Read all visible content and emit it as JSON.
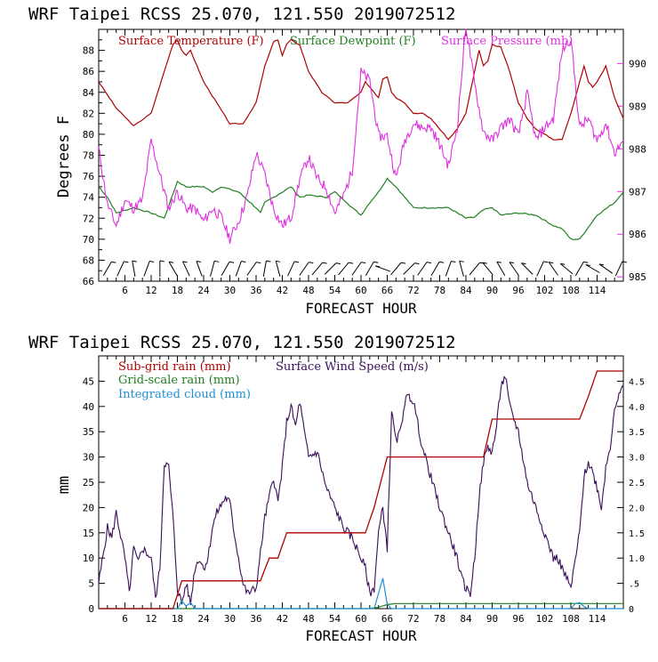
{
  "header_top": "WRF   Taipei RCSS   25.070, 121.550  2019072512",
  "header_bottom": "WRF   Taipei RCSS   25.070, 121.550  2019072512",
  "colors": {
    "temp": "#b00000",
    "dew": "#208020",
    "pres": "#e030e0",
    "rain": "#b00000",
    "grain": "#208020",
    "cloud": "#1e8fd6",
    "wind": "#3a0d5a"
  },
  "chart_data": [
    {
      "type": "line",
      "title": "WRF   Taipei RCSS   25.070, 121.550  2019072512",
      "xlabel": "FORECAST HOUR",
      "ylabel": "Degrees F",
      "xlim": [
        0,
        120
      ],
      "ylim": [
        66,
        90
      ],
      "y2lim": [
        984.9,
        990.8
      ],
      "xticks": [
        "6",
        "12",
        "18",
        "24",
        "30",
        "36",
        "42",
        "48",
        "54",
        "60",
        "66",
        "72",
        "78",
        "84",
        "90",
        "96",
        "102",
        "108",
        "114"
      ],
      "yticks": [
        "66",
        "68",
        "70",
        "72",
        "74",
        "76",
        "78",
        "80",
        "82",
        "84",
        "86",
        "88"
      ],
      "y2ticks": [
        "985",
        "986",
        "987",
        "988",
        "989",
        "990"
      ],
      "legend": [
        "Surface Temperature (F)",
        "Surface Dewpoint (F)",
        "Surface Pressure (mb)"
      ],
      "series": [
        {
          "name": "Surface Temperature (F)",
          "x": [
            0,
            4,
            8,
            12,
            15,
            17,
            18,
            19,
            20,
            21,
            24,
            27,
            30,
            33,
            36,
            38,
            40,
            41,
            42,
            43,
            44,
            46,
            48,
            51,
            54,
            57,
            60,
            61,
            62,
            64,
            65,
            66,
            67,
            68,
            70,
            72,
            74,
            76,
            78,
            80,
            82,
            84,
            86,
            87,
            88,
            89,
            90,
            92,
            94,
            96,
            98,
            100,
            102,
            104,
            106,
            108,
            110,
            111,
            112,
            113,
            114,
            116,
            118,
            120
          ],
          "values": [
            85,
            82.5,
            80.8,
            82,
            86,
            88.6,
            89,
            88,
            87.5,
            88,
            85,
            83,
            81,
            81,
            83,
            86.5,
            88.8,
            89,
            87.5,
            88.6,
            89,
            88.5,
            86,
            84,
            83,
            83,
            84,
            85,
            84.5,
            83.5,
            85.3,
            85.5,
            84,
            83.5,
            83,
            82,
            82,
            81.5,
            80.5,
            79.5,
            80.5,
            82,
            86,
            88,
            86.5,
            87,
            88.5,
            88.3,
            86,
            83,
            81.5,
            80.5,
            80,
            79.5,
            79.5,
            82,
            85,
            86.5,
            85,
            84.5,
            85,
            86.5,
            83.5,
            81.5
          ]
        },
        {
          "name": "Surface Dewpoint (F)",
          "x": [
            0,
            2,
            4,
            8,
            12,
            15,
            18,
            20,
            24,
            26,
            28,
            32,
            36,
            37,
            38,
            40,
            44,
            46,
            48,
            52,
            54,
            56,
            58,
            60,
            62,
            64,
            66,
            68,
            70,
            72,
            76,
            80,
            84,
            86,
            88,
            90,
            92,
            96,
            100,
            104,
            106,
            108,
            110,
            114,
            118,
            120
          ],
          "values": [
            75,
            74,
            72.5,
            73,
            72.5,
            72,
            75.5,
            75,
            75,
            74.5,
            75,
            74.5,
            73,
            72.5,
            73.5,
            74,
            75,
            74,
            74.2,
            74,
            74.5,
            73.8,
            73,
            72.3,
            73.5,
            74.5,
            75.8,
            75,
            74,
            73,
            73,
            73,
            72,
            72.1,
            72.8,
            73,
            72.3,
            72.5,
            72.3,
            71.3,
            71,
            70,
            70,
            72.3,
            73.5,
            74.5
          ]
        },
        {
          "name": "Surface Pressure (mb)",
          "x": [
            0,
            2,
            4,
            6,
            8,
            10,
            12,
            14,
            16,
            18,
            20,
            22,
            24,
            26,
            28,
            30,
            32,
            34,
            36,
            38,
            40,
            42,
            44,
            46,
            48,
            50,
            52,
            54,
            56,
            58,
            60,
            62,
            64,
            66,
            68,
            70,
            72,
            74,
            76,
            78,
            80,
            82,
            84,
            86,
            88,
            90,
            92,
            94,
            96,
            98,
            100,
            102,
            104,
            106,
            108,
            110,
            112,
            114,
            116,
            118,
            120
          ],
          "values": [
            988,
            986.7,
            986.2,
            986.8,
            986.6,
            986.8,
            988.2,
            987.4,
            986.6,
            987,
            986.6,
            986.6,
            986.3,
            986.6,
            986.4,
            985.9,
            986.3,
            986.9,
            987.9,
            987.4,
            986.6,
            986.2,
            986.4,
            987.3,
            987.8,
            987.3,
            987.1,
            986.5,
            986.9,
            987.5,
            989.8,
            989.6,
            988.3,
            988.3,
            987.3,
            988.2,
            988.6,
            988.5,
            988.5,
            988.1,
            987.6,
            988.5,
            990.9,
            989.5,
            988.4,
            988.2,
            988.5,
            988.7,
            988.3,
            989.3,
            988.2,
            988.5,
            988.7,
            990.3,
            990.6,
            988.5,
            988.7,
            988.2,
            988.6,
            987.9,
            988.2
          ]
        },
        {
          "name": "Surface Wind barbs",
          "x": [
            2,
            5,
            8,
            11,
            14,
            17,
            20,
            23,
            26,
            29,
            32,
            35,
            38,
            41,
            44,
            47,
            50,
            53,
            56,
            59,
            62,
            65,
            68,
            71,
            74,
            77,
            80,
            83,
            86,
            89,
            92,
            95,
            98,
            101,
            104,
            107,
            110,
            113,
            116,
            119
          ],
          "values": [
            1,
            1,
            1,
            1,
            1,
            1,
            1,
            1,
            1,
            1,
            1,
            1,
            1,
            1,
            1,
            1,
            1,
            1,
            1,
            1,
            1,
            1,
            1,
            1,
            1,
            1,
            1,
            1,
            1,
            1,
            1,
            1,
            1,
            1,
            1,
            1,
            1,
            1,
            1,
            1
          ]
        }
      ]
    },
    {
      "type": "line",
      "title": "WRF   Taipei RCSS   25.070, 121.550  2019072512",
      "xlabel": "FORECAST HOUR",
      "ylabel": "mm",
      "xlim": [
        0,
        120
      ],
      "ylim": [
        0,
        50
      ],
      "y2lim": [
        0,
        5
      ],
      "xticks": [
        "6",
        "12",
        "18",
        "24",
        "30",
        "36",
        "42",
        "48",
        "54",
        "60",
        "66",
        "72",
        "78",
        "84",
        "90",
        "96",
        "102",
        "108",
        "114"
      ],
      "yticks": [
        "0",
        "5",
        "10",
        "15",
        "20",
        "25",
        "30",
        "35",
        "40",
        "45"
      ],
      "y2ticks": [
        "0",
        ".5",
        "1.0",
        "1.5",
        "2.0",
        "2.5",
        "3.0",
        "3.5",
        "4.0",
        "4.5"
      ],
      "legend": [
        "Sub-grid rain (mm)",
        "Surface Wind Speed (m/s)",
        "Grid-scale rain (mm)",
        "Integrated cloud (mm)"
      ],
      "series": [
        {
          "name": "Sub-grid rain (mm)",
          "x": [
            0,
            17,
            19,
            37,
            39,
            41,
            43,
            45,
            61,
            63,
            66,
            68,
            88,
            90,
            92,
            110,
            112,
            114,
            116,
            120
          ],
          "values": [
            0,
            0,
            5.5,
            5.5,
            10,
            10,
            15,
            15,
            15,
            20,
            30,
            30,
            30,
            37.5,
            37.5,
            37.5,
            42,
            47,
            47,
            47
          ]
        },
        {
          "name": "Grid-scale rain (mm)",
          "x": [
            0,
            62,
            64,
            66,
            68,
            120
          ],
          "values": [
            0,
            0,
            0.3,
            0.8,
            1,
            1
          ]
        },
        {
          "name": "Integrated cloud (mm)",
          "x": [
            0,
            18,
            19,
            20,
            21,
            22,
            63,
            64,
            65,
            66,
            67,
            108,
            109,
            110,
            111,
            112,
            120
          ],
          "values": [
            0,
            0,
            1.5,
            0.5,
            1.2,
            0,
            0,
            3,
            6,
            0.8,
            0,
            0,
            1,
            1.2,
            0.4,
            0,
            0
          ]
        },
        {
          "name": "Surface Wind Speed (m/s)",
          "x": [
            0,
            2,
            3,
            4,
            6,
            7,
            8,
            9,
            10,
            12,
            13,
            14,
            15,
            16,
            17,
            18,
            19,
            20,
            21,
            22,
            23,
            24,
            25,
            26,
            27,
            29,
            30,
            31,
            32,
            33,
            34,
            36,
            38,
            40,
            41,
            42,
            43,
            44,
            45,
            46,
            47,
            48,
            50,
            52,
            54,
            56,
            58,
            60,
            61,
            62,
            63,
            64,
            65,
            66,
            67,
            68,
            69,
            70,
            71,
            72,
            74,
            76,
            78,
            80,
            82,
            83,
            84,
            85,
            86,
            87,
            88,
            89,
            90,
            91,
            92,
            93,
            94,
            96,
            98,
            100,
            102,
            104,
            105,
            106,
            107,
            108,
            110,
            111,
            112,
            113,
            114,
            115,
            116,
            117,
            118,
            119,
            120
          ],
          "values": [
            0.5,
            1.6,
            1.4,
            1.9,
            1.0,
            0.3,
            1.2,
            0.9,
            1.2,
            1.0,
            0.2,
            0.8,
            2.9,
            2.8,
            1.8,
            0.4,
            0.1,
            0.5,
            0.1,
            0.8,
            1.0,
            0.8,
            1.0,
            1.6,
            1.9,
            2.2,
            2.1,
            1.5,
            1.0,
            0.5,
            0.3,
            0.4,
            1.8,
            2.6,
            2.1,
            2.8,
            3.7,
            4.0,
            3.6,
            4.1,
            3.5,
            3.0,
            3.1,
            2.4,
            2.0,
            1.6,
            1.4,
            1.0,
            0.8,
            0.3,
            0.4,
            1.5,
            2.0,
            1.2,
            3.9,
            3.3,
            3.5,
            4.1,
            4.2,
            4.1,
            3.2,
            2.6,
            2.0,
            1.5,
            1.0,
            0.6,
            0.4,
            0.3,
            1.0,
            2.2,
            2.9,
            3.2,
            3.1,
            3.6,
            4.4,
            4.6,
            4.0,
            3.5,
            2.5,
            2.0,
            1.5,
            1.0,
            1.0,
            0.8,
            0.6,
            0.4,
            1.5,
            2.6,
            2.9,
            2.7,
            2.4,
            2.0,
            2.8,
            3.2,
            4.0,
            4.2,
            4.4
          ]
        }
      ]
    }
  ]
}
